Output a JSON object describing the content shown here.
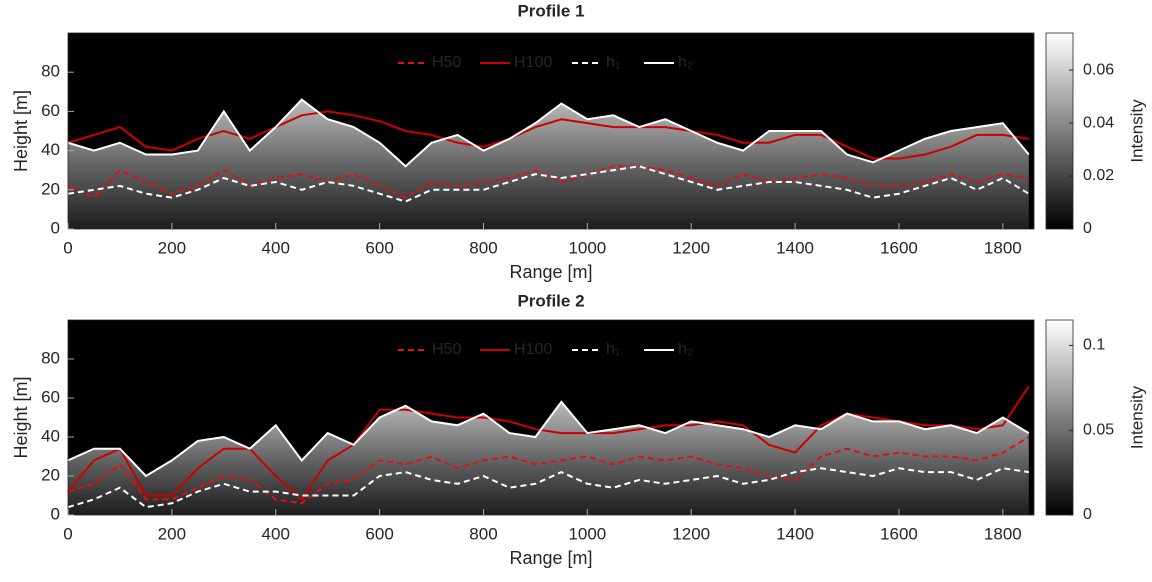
{
  "chart_data": [
    {
      "type": "line",
      "title": "Profile 1",
      "xlabel": "Range [m]",
      "ylabel": "Height [m]",
      "colorbar_label": "Intensity",
      "xlim": [
        0,
        1860
      ],
      "xticks": [
        0,
        200,
        400,
        600,
        800,
        1000,
        1200,
        1400,
        1600,
        1800
      ],
      "ylim": [
        0,
        100
      ],
      "yticks": [
        0,
        20,
        40,
        60,
        80
      ],
      "clim": [
        0,
        0.074
      ],
      "cticks": [
        0,
        0.02,
        0.04,
        0.06
      ],
      "x": [
        0,
        50,
        100,
        150,
        200,
        250,
        300,
        350,
        400,
        450,
        500,
        550,
        600,
        650,
        700,
        750,
        800,
        850,
        900,
        950,
        1000,
        1050,
        1100,
        1150,
        1200,
        1250,
        1300,
        1350,
        1400,
        1450,
        1500,
        1550,
        1600,
        1650,
        1700,
        1750,
        1800,
        1850
      ],
      "series": [
        {
          "name": "H50",
          "color": "#e01010",
          "dash": true,
          "values": [
            22,
            16,
            30,
            24,
            18,
            22,
            30,
            22,
            26,
            28,
            24,
            28,
            22,
            16,
            24,
            22,
            24,
            26,
            30,
            24,
            28,
            32,
            32,
            30,
            26,
            22,
            28,
            24,
            26,
            28,
            26,
            22,
            22,
            24,
            28,
            24,
            28,
            26
          ]
        },
        {
          "name": "H100",
          "color": "#cc0000",
          "dash": false,
          "values": [
            44,
            48,
            52,
            42,
            40,
            46,
            50,
            46,
            52,
            58,
            60,
            58,
            55,
            50,
            48,
            44,
            42,
            46,
            52,
            56,
            54,
            52,
            52,
            52,
            50,
            48,
            44,
            44,
            48,
            48,
            42,
            36,
            36,
            38,
            42,
            48,
            48,
            46
          ]
        },
        {
          "name": "h₁",
          "color": "#ffffff",
          "dash": true,
          "values": [
            18,
            20,
            22,
            18,
            16,
            20,
            26,
            22,
            24,
            20,
            24,
            22,
            18,
            14,
            20,
            20,
            20,
            24,
            28,
            26,
            28,
            30,
            32,
            28,
            24,
            20,
            22,
            24,
            24,
            22,
            20,
            16,
            18,
            22,
            26,
            20,
            26,
            18
          ]
        },
        {
          "name": "h₂",
          "color": "#ffffff",
          "dash": false,
          "values": [
            44,
            40,
            44,
            38,
            38,
            40,
            60,
            40,
            52,
            66,
            56,
            52,
            44,
            32,
            44,
            48,
            40,
            46,
            54,
            64,
            56,
            58,
            52,
            56,
            50,
            44,
            40,
            50,
            50,
            50,
            38,
            34,
            40,
            46,
            50,
            52,
            54,
            38
          ]
        }
      ]
    },
    {
      "type": "line",
      "title": "Profile 2",
      "xlabel": "Range [m]",
      "ylabel": "Height [m]",
      "colorbar_label": "Intensity",
      "xlim": [
        0,
        1860
      ],
      "xticks": [
        0,
        200,
        400,
        600,
        800,
        1000,
        1200,
        1400,
        1600,
        1800
      ],
      "ylim": [
        0,
        100
      ],
      "yticks": [
        0,
        20,
        40,
        60,
        80
      ],
      "clim": [
        0,
        0.115
      ],
      "cticks": [
        0,
        0.05,
        0.1
      ],
      "x": [
        0,
        50,
        100,
        150,
        200,
        250,
        300,
        350,
        400,
        450,
        500,
        550,
        600,
        650,
        700,
        750,
        800,
        850,
        900,
        950,
        1000,
        1050,
        1100,
        1150,
        1200,
        1250,
        1300,
        1350,
        1400,
        1450,
        1500,
        1550,
        1600,
        1650,
        1700,
        1750,
        1800,
        1850
      ],
      "series": [
        {
          "name": "H50",
          "color": "#e01010",
          "dash": true,
          "values": [
            12,
            16,
            26,
            8,
            8,
            14,
            20,
            18,
            8,
            6,
            16,
            18,
            28,
            26,
            30,
            24,
            28,
            30,
            26,
            28,
            30,
            26,
            30,
            28,
            30,
            26,
            24,
            20,
            18,
            30,
            34,
            30,
            32,
            30,
            30,
            28,
            32,
            40
          ]
        },
        {
          "name": "H100",
          "color": "#cc0000",
          "dash": false,
          "values": [
            12,
            28,
            34,
            10,
            10,
            24,
            34,
            34,
            20,
            8,
            28,
            36,
            54,
            54,
            52,
            50,
            50,
            48,
            44,
            42,
            42,
            42,
            44,
            46,
            46,
            48,
            46,
            36,
            32,
            46,
            52,
            50,
            48,
            46,
            46,
            44,
            46,
            66
          ]
        },
        {
          "name": "h₁",
          "color": "#ffffff",
          "dash": true,
          "values": [
            4,
            8,
            14,
            4,
            6,
            12,
            16,
            12,
            12,
            10,
            10,
            10,
            20,
            22,
            18,
            16,
            20,
            14,
            16,
            22,
            16,
            14,
            18,
            16,
            18,
            20,
            16,
            18,
            22,
            24,
            22,
            20,
            24,
            22,
            22,
            18,
            24,
            22
          ]
        },
        {
          "name": "h₂",
          "color": "#ffffff",
          "dash": false,
          "values": [
            28,
            34,
            34,
            20,
            28,
            38,
            40,
            34,
            46,
            28,
            42,
            36,
            50,
            56,
            48,
            46,
            52,
            42,
            40,
            58,
            42,
            44,
            46,
            42,
            48,
            46,
            44,
            40,
            46,
            44,
            52,
            48,
            48,
            44,
            46,
            42,
            50,
            42
          ]
        }
      ]
    }
  ]
}
